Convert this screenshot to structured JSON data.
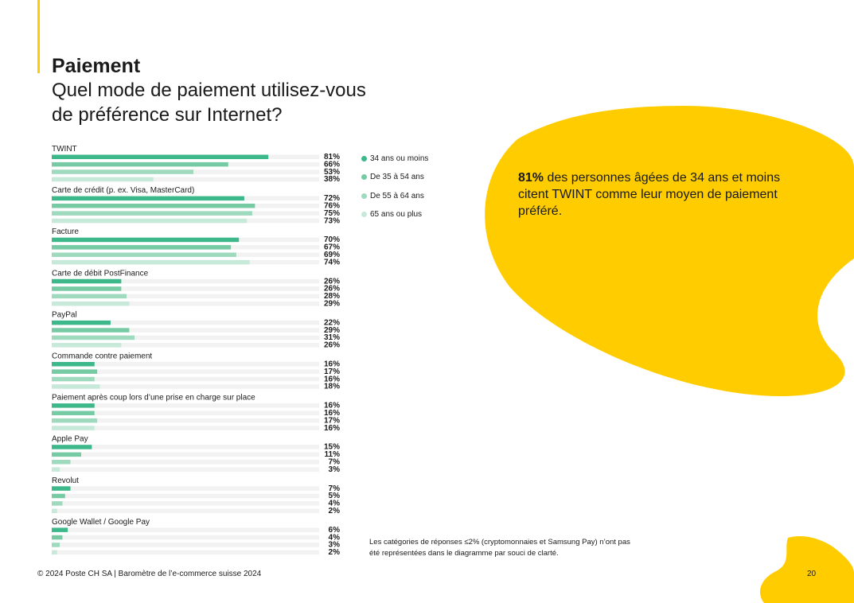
{
  "page": {
    "title": "Paiement",
    "subtitle": "Quel mode de paiement utilisez-vous de préférence sur Internet?",
    "highlight_bold": "81%",
    "highlight_text": " des personnes âgées de 34 ans et moins citent TWINT comme leur moyen de paiement préféré.",
    "note": "Les catégories de réponses ≤2% (cryptomonnaies et Samsung Pay) n’ont pas été représentées dans le diagramme par souci de clarté.",
    "footer": "© 2024 Poste CH SA | Baromètre de l’e-commerce suisse 2024",
    "page_number": "20"
  },
  "colors": {
    "accent": "#FFCC00",
    "track": "#F2F2F2",
    "series": [
      "#3DB88A",
      "#77CBA4",
      "#9FD9BE",
      "#C6E9D9"
    ]
  },
  "chart_data": {
    "type": "bar",
    "orientation": "horizontal",
    "xlim": [
      0,
      100
    ],
    "unit": "%",
    "categories": [
      "TWINT",
      "Carte de crédit (p. ex. Visa, MasterCard)",
      "Facture",
      "Carte de débit PostFinance",
      "PayPal",
      "Commande contre paiement",
      "Paiement après coup lors d’une prise en charge sur place",
      "Apple Pay",
      "Revolut",
      "Google Wallet / Google Pay"
    ],
    "series": [
      {
        "name": "34 ans ou moins",
        "values": [
          81,
          72,
          70,
          26,
          22,
          16,
          16,
          15,
          7,
          6
        ]
      },
      {
        "name": "De 35 à 54 ans",
        "values": [
          66,
          76,
          67,
          26,
          29,
          17,
          16,
          11,
          5,
          4
        ]
      },
      {
        "name": "De 55 à 64 ans",
        "values": [
          53,
          75,
          69,
          28,
          31,
          16,
          17,
          7,
          4,
          3
        ]
      },
      {
        "name": "65 ans ou plus",
        "values": [
          38,
          73,
          74,
          29,
          26,
          18,
          16,
          3,
          2,
          2
        ]
      }
    ],
    "legend_position": "right",
    "grid": false
  }
}
